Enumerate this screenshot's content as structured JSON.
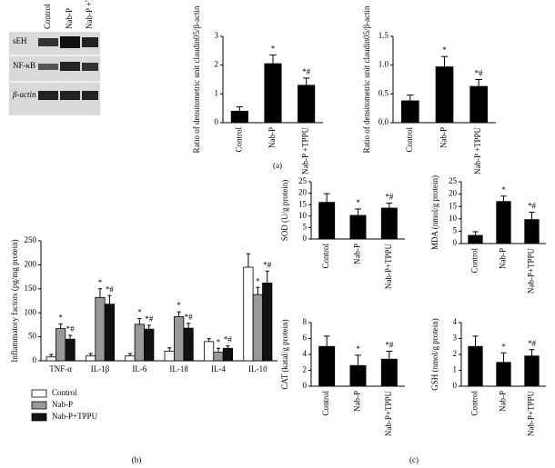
{
  "blot": {
    "lanes": [
      "Control",
      "Nab-P",
      "Nab-P +TPPU"
    ],
    "rows": [
      "sEH",
      "NF-κB",
      "β-actin"
    ]
  },
  "panel_labels": [
    "(a)",
    "(b)",
    "(c)"
  ],
  "chart_data": [
    {
      "type": "bar",
      "ylabel": "Ratio of densitometric unit claudin05/β-actin",
      "categories": [
        "Control",
        "Nab-P",
        "Nab-P +TPPU"
      ],
      "values": [
        0.4,
        2.05,
        1.3
      ],
      "errors": [
        0.15,
        0.3,
        0.25
      ],
      "annotations": [
        null,
        "*",
        "*#"
      ],
      "color": "#000000",
      "ylim": [
        0,
        3
      ],
      "yticks": [
        0,
        1,
        2,
        3
      ]
    },
    {
      "type": "bar",
      "ylabel": "Ratio of densitometric unit claudin05/β-actin",
      "categories": [
        "Control",
        "Nab-P",
        "Nab-P +TPPU"
      ],
      "values": [
        0.38,
        0.97,
        0.63
      ],
      "errors": [
        0.1,
        0.18,
        0.12
      ],
      "annotations": [
        null,
        "*",
        "*#"
      ],
      "color": "#000000",
      "ylim": [
        0,
        1.5
      ],
      "yticks": [
        {
          "value": 0,
          "label": "0.0"
        },
        0.5,
        {
          "value": 1,
          "label": "1.0"
        },
        1.5
      ]
    },
    {
      "type": "bar",
      "ylabel": "Inflammatory factors (pg/mg protein)",
      "categories": [
        "TNF-α",
        "IL-1β",
        "IL-6",
        "IL-18",
        "IL-4",
        "IL-10"
      ],
      "series": [
        {
          "name": "Control",
          "color": "#ffffff",
          "values": [
            8,
            10,
            10,
            20,
            40,
            195
          ],
          "errors": [
            5,
            5,
            5,
            7,
            6,
            28
          ],
          "annotations": [
            null,
            null,
            null,
            null,
            null,
            null
          ]
        },
        {
          "name": "Nab-P",
          "color": "#999999",
          "values": [
            67,
            132,
            76,
            92,
            18,
            138
          ],
          "errors": [
            10,
            18,
            12,
            10,
            8,
            15
          ],
          "annotations": [
            "*",
            "*",
            "*",
            "*",
            "*",
            "*"
          ]
        },
        {
          "name": "Nab-P+TPPU",
          "color": "#111111",
          "values": [
            45,
            118,
            66,
            68,
            26,
            162
          ],
          "errors": [
            8,
            18,
            8,
            10,
            5,
            25
          ],
          "annotations": [
            "*#",
            "*#",
            "*#",
            "*#",
            "*#",
            "*#"
          ]
        }
      ],
      "ylim": [
        0,
        250
      ],
      "yticks": [
        0,
        50,
        100,
        150,
        200,
        250
      ],
      "legend": "bottom-left"
    },
    {
      "type": "bar",
      "ylabel": "SOD (U/g protein)",
      "categories": [
        "Control",
        "Nab-P",
        "Nab-P+TPPU"
      ],
      "values": [
        16,
        10.3,
        13.5
      ],
      "errors": [
        3.8,
        2.8,
        2.2
      ],
      "annotations": [
        null,
        "*",
        "*#"
      ],
      "color": "#000000",
      "ylim": [
        0,
        25
      ],
      "yticks": [
        0,
        5,
        10,
        15,
        20,
        25
      ]
    },
    {
      "type": "bar",
      "ylabel": "MDA (nmol/g protein)",
      "categories": [
        "Control",
        "Nab-P",
        "Nab-P+TPPU"
      ],
      "values": [
        3.3,
        17,
        9.7
      ],
      "errors": [
        1.5,
        2.2,
        3
      ],
      "annotations": [
        null,
        "*",
        "*#"
      ],
      "color": "#000000",
      "ylim": [
        0,
        25
      ],
      "yticks": [
        0,
        5,
        10,
        15,
        20,
        25
      ]
    },
    {
      "type": "bar",
      "ylabel": "CAT (katal/g protein)",
      "categories": [
        "Control",
        "Nab-P",
        "Nab-P+TPPU"
      ],
      "values": [
        5,
        2.6,
        3.4
      ],
      "errors": [
        1.3,
        1.3,
        1.0
      ],
      "annotations": [
        null,
        "*",
        "*#"
      ],
      "color": "#000000",
      "ylim": [
        0,
        8
      ],
      "yticks": [
        0,
        2,
        4,
        6,
        8
      ]
    },
    {
      "type": "bar",
      "ylabel": "GSH (nmol/g protein)",
      "categories": [
        "Control",
        "Nab-P",
        "Nab-P+TPPU"
      ],
      "values": [
        2.5,
        1.5,
        1.9
      ],
      "errors": [
        0.65,
        0.6,
        0.4
      ],
      "annotations": [
        null,
        "*",
        "*#"
      ],
      "color": "#000000",
      "ylim": [
        0,
        4
      ],
      "yticks": [
        0,
        1,
        2,
        3,
        4
      ]
    }
  ]
}
